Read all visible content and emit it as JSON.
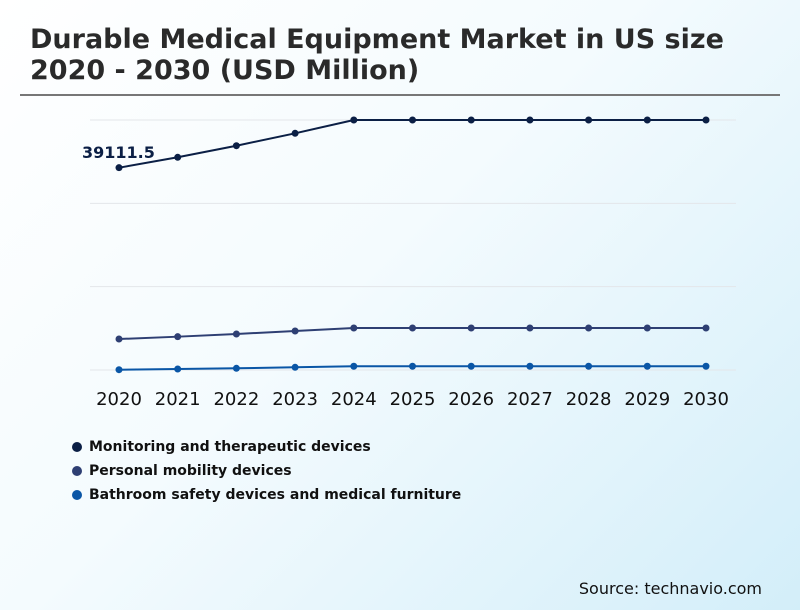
{
  "chart_data": {
    "type": "line",
    "title": "Durable Medical Equipment Market in US size 2020 - 2030 (USD Million)",
    "x": [
      "2020",
      "2021",
      "2022",
      "2023",
      "2024",
      "2025",
      "2026",
      "2027",
      "2028",
      "2029",
      "2030"
    ],
    "ylim": [
      0,
      48330
    ],
    "grid": true,
    "legend_position": "bottom-left",
    "annotation": "39111.5",
    "series": [
      {
        "name": "Monitoring and therapeutic devices",
        "color": "#0b1f45",
        "values": [
          39111.5,
          41120,
          43360,
          45760,
          48330,
          48330,
          48330,
          48330,
          48330,
          48330,
          48330
        ]
      },
      {
        "name": "Personal mobility devices",
        "color": "#2e3f73",
        "values": [
          5990,
          6440,
          6960,
          7540,
          8120,
          8120,
          8120,
          8120,
          8120,
          8120,
          8120
        ]
      },
      {
        "name": "Bathroom safety devices and medical furniture",
        "color": "#0a56a6",
        "values": [
          60,
          190,
          330,
          520,
          720,
          720,
          720,
          720,
          720,
          720,
          720
        ]
      }
    ]
  },
  "source": "Source: technavio.com"
}
